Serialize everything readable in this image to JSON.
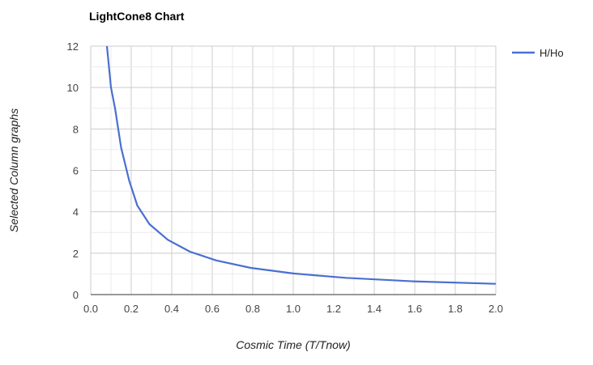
{
  "chart_data": {
    "type": "line",
    "title": "LightCone8 Chart",
    "xlabel": "Cosmic Time (T/Tnow)",
    "ylabel": "Selected Column graphs",
    "xlim": [
      0,
      2
    ],
    "ylim": [
      0,
      12
    ],
    "x_ticks": [
      "0.0",
      "0.2",
      "0.4",
      "0.6",
      "0.8",
      "1.0",
      "1.2",
      "1.4",
      "1.6",
      "1.8",
      "2.0"
    ],
    "y_ticks": [
      "0",
      "2",
      "4",
      "6",
      "8",
      "10",
      "12"
    ],
    "grid": true,
    "legend_position": "top-right",
    "series": [
      {
        "name": "H/Ho",
        "color": "#4a6fd1",
        "x": [
          0.08,
          0.1,
          0.12,
          0.15,
          0.19,
          0.23,
          0.29,
          0.38,
          0.49,
          0.62,
          0.79,
          1.0,
          1.26,
          1.59,
          2.0
        ],
        "y": [
          12.0,
          10.0,
          9.0,
          7.1,
          5.5,
          4.3,
          3.4,
          2.65,
          2.07,
          1.65,
          1.29,
          1.02,
          0.81,
          0.64,
          0.52
        ]
      }
    ]
  }
}
